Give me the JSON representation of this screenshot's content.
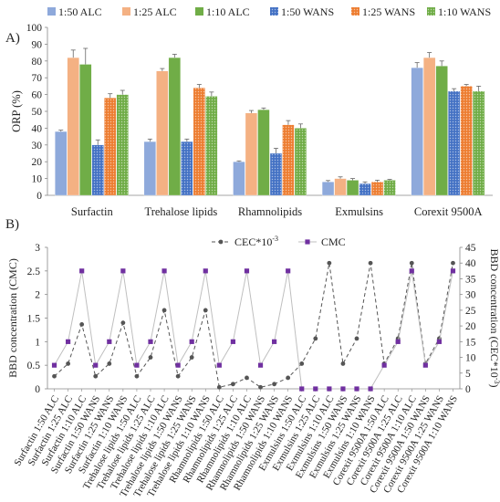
{
  "chart_data": [
    {
      "type": "bar",
      "panel_label": "A)",
      "ylabel": "ORP (%)",
      "ylim": [
        0,
        100
      ],
      "yticks": [
        0,
        10,
        20,
        30,
        40,
        50,
        60,
        70,
        80,
        90,
        100
      ],
      "legend_position": "top",
      "categories": [
        "Surfactin",
        "Trehalose lipids",
        "Rhamnolipids",
        "Exmulsins",
        "Corexit 9500A"
      ],
      "series": [
        {
          "name": "1:50 ALC",
          "color": "#8ea9db",
          "pattern": "solid",
          "values": [
            38,
            32,
            20,
            8,
            76
          ],
          "errors": [
            0.8,
            1.5,
            0.5,
            0.8,
            3.0
          ]
        },
        {
          "name": "1:25 ALC",
          "color": "#f4b183",
          "pattern": "solid",
          "values": [
            82,
            74,
            49,
            10,
            82
          ],
          "errors": [
            4.5,
            1.5,
            1.5,
            1.0,
            3.0
          ]
        },
        {
          "name": "1:10 ALC",
          "color": "#70ad47",
          "pattern": "solid",
          "values": [
            78,
            82,
            51,
            9,
            77
          ],
          "errors": [
            9.5,
            2.0,
            1.0,
            1.0,
            3.0
          ]
        },
        {
          "name": "1:50 WANS",
          "color": "#4472c4",
          "pattern": "dots",
          "values": [
            30,
            32,
            25,
            7,
            62
          ],
          "errors": [
            3.0,
            1.5,
            3.0,
            1.0,
            1.5
          ]
        },
        {
          "name": "1:25 WANS",
          "color": "#ed7d31",
          "pattern": "dots",
          "values": [
            58,
            64,
            42,
            8,
            65
          ],
          "errors": [
            2.5,
            2.0,
            2.5,
            1.0,
            1.0
          ]
        },
        {
          "name": "1:10 WANS",
          "color": "#70ad47",
          "pattern": "dots",
          "values": [
            60,
            59,
            40,
            9,
            62
          ],
          "errors": [
            2.5,
            2.5,
            2.5,
            0.5,
            3.0
          ]
        }
      ]
    },
    {
      "type": "line",
      "panel_label": "B)",
      "ylabel_left": "BBD concentration (CMC)",
      "ylabel_right": "BBD concentration  (CEC*10",
      "ylabel_right_sup": "-3",
      "ylabel_right_end": ")",
      "ylim_left": [
        0,
        3
      ],
      "yticks_left": [
        0,
        0.5,
        1,
        1.5,
        2,
        2.5,
        3
      ],
      "ylim_right": [
        0,
        45
      ],
      "yticks_right": [
        0,
        5,
        10,
        15,
        20,
        25,
        30,
        35,
        40,
        45
      ],
      "legend_position": "top-right",
      "categories": [
        "Surfactin 1:50 ALC",
        "Surfactin 1:25 ALC",
        "Surfactin 1:10 ALC",
        "Surfactin 1:50 WANS",
        "Surfactin 1:25 WANS",
        "Surfactin 1:10 WANS",
        "Trehalose lipids 1:50 ALC",
        "Trehalose lipids 1:25 ALC",
        "Trehalose lipids 1:10 ALC",
        "Trehalose lipids 1:50 WANS",
        "Trehalose lipids 1:25 WANS",
        "Trehalose lipids 1:10 WANS",
        "Rhamnolipids 1:50 ALC",
        "Rhamnolipids 1:25 ALC",
        "Rhamnolipids 1:10 ALC",
        "Rhamnolipids 1:50 WANS",
        "Rhamnolipids 1:25 WANS",
        "Rhamnolipids 1:10 WANS",
        "Exmulsins 1:50 ALC",
        "Exmulsins 1:25 ALC",
        "Exmulsins 1:10 ALC",
        "Exmulsins 1:50 WANS",
        "Exmulsins 1:25 WANS",
        "Exmulsins 1:10 WANS",
        "Corexit 9500A 1:50 ALC",
        "Corexit 9500A 1:25 ALC",
        "Corexit 9500A 1:10 ALC",
        "Corexit 9500A 1:50 WANS",
        "Corexit 9500A 1:25 WANS",
        "Corexit 9500A 1:10 WANS"
      ],
      "series": [
        {
          "name": "CEC*10",
          "name_sup": "-3",
          "axis": "right",
          "color": "#555555",
          "marker": "circle",
          "dash": "dashed",
          "values": [
            4,
            8,
            20.5,
            4,
            8,
            21,
            4,
            10,
            25,
            4,
            10,
            25,
            0.5,
            1.5,
            3.5,
            0.5,
            1.5,
            3.5,
            8,
            16,
            40,
            8,
            16,
            40,
            8,
            16,
            40,
            8,
            16,
            40
          ]
        },
        {
          "name": "CMC",
          "axis": "left",
          "color": "#7030a0",
          "line_color": "#bfbfbf",
          "marker": "square",
          "dash": "solid",
          "values": [
            0.5,
            1,
            2.5,
            0.5,
            1,
            2.5,
            0.5,
            1,
            2.5,
            0.5,
            1,
            2.5,
            0.5,
            1,
            2.5,
            0.5,
            1,
            2.5,
            0,
            0,
            0,
            0,
            0,
            0,
            0.5,
            1,
            2.5,
            0.5,
            1,
            2.5
          ]
        }
      ]
    }
  ]
}
